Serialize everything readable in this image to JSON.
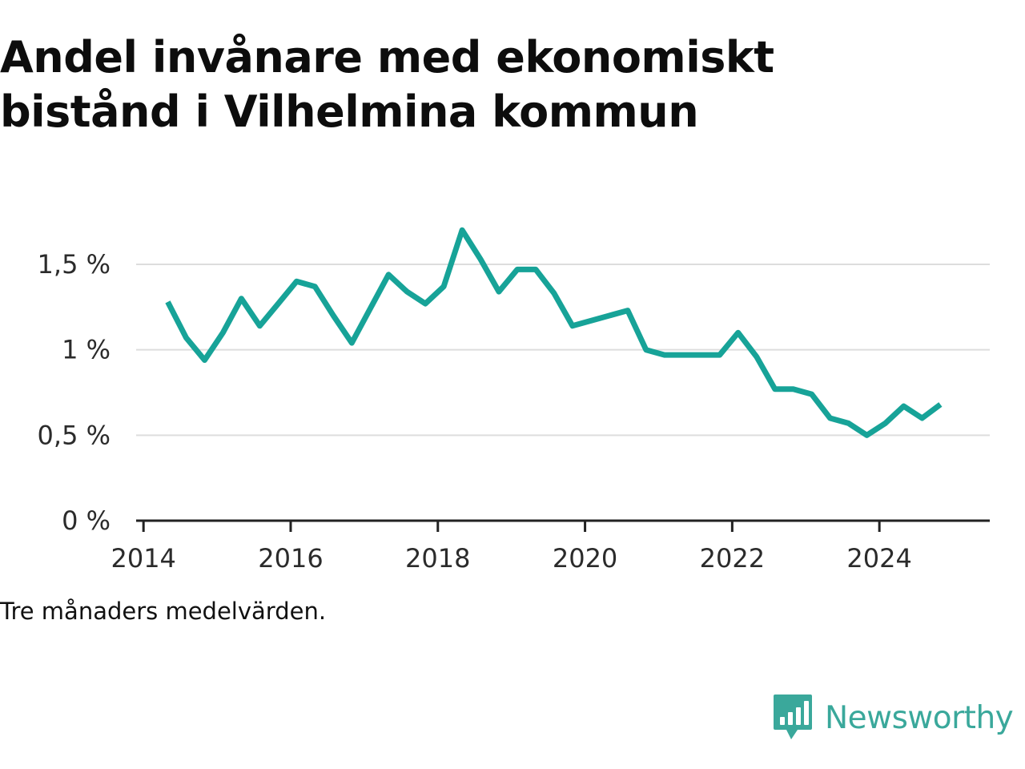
{
  "title": "Andel invånare med ekonomiskt bistånd i Vilhelmina kommun",
  "note": "Tre månaders medelvärden.",
  "brand": {
    "name": "Newsworthy",
    "icon": "newsworthy-bar-chart-logo-icon",
    "color": "#3aa89b"
  },
  "colors": {
    "line": "#17a398",
    "grid": "#dddddd",
    "axis": "#222222"
  },
  "chart_data": {
    "type": "line",
    "title": "Andel invånare med ekonomiskt bistånd i Vilhelmina kommun",
    "xlabel": "",
    "ylabel": "",
    "xlim": [
      2013.9,
      2025.5
    ],
    "ylim": [
      0,
      1.8
    ],
    "grid": true,
    "legend": "none",
    "x_ticks": [
      2014,
      2016,
      2018,
      2020,
      2022,
      2024
    ],
    "x_tick_labels": [
      "2014",
      "2016",
      "2018",
      "2020",
      "2022",
      "2024"
    ],
    "y_ticks": [
      0,
      0.5,
      1,
      1.5
    ],
    "y_tick_labels": [
      "0 %",
      "0,5 %",
      "1 %",
      "1,5 %"
    ],
    "series": [
      {
        "x": [
          2014.33,
          2014.58,
          2014.83,
          2015.08,
          2015.33,
          2015.58,
          2015.83,
          2016.08,
          2016.33,
          2016.58,
          2016.83,
          2017.08,
          2017.33,
          2017.58,
          2017.83,
          2018.08,
          2018.33,
          2018.58,
          2018.83,
          2019.08,
          2019.33,
          2019.58,
          2019.83,
          2020.08,
          2020.33,
          2020.58,
          2020.83,
          2021.08,
          2021.33,
          2021.58,
          2021.83,
          2022.08,
          2022.33,
          2022.58,
          2022.83,
          2023.08,
          2023.33,
          2023.58,
          2023.83,
          2024.08,
          2024.33,
          2024.58,
          2024.83
        ],
        "values": [
          1.28,
          1.07,
          0.94,
          1.1,
          1.3,
          1.14,
          1.27,
          1.4,
          1.37,
          1.2,
          1.04,
          1.24,
          1.44,
          1.34,
          1.27,
          1.37,
          1.7,
          1.53,
          1.34,
          1.47,
          1.47,
          1.33,
          1.14,
          1.17,
          1.2,
          1.23,
          1.0,
          0.97,
          0.97,
          0.97,
          0.97,
          1.1,
          0.96,
          0.77,
          0.77,
          0.74,
          0.6,
          0.57,
          0.5,
          0.57,
          0.67,
          0.6,
          0.68
        ]
      }
    ]
  }
}
